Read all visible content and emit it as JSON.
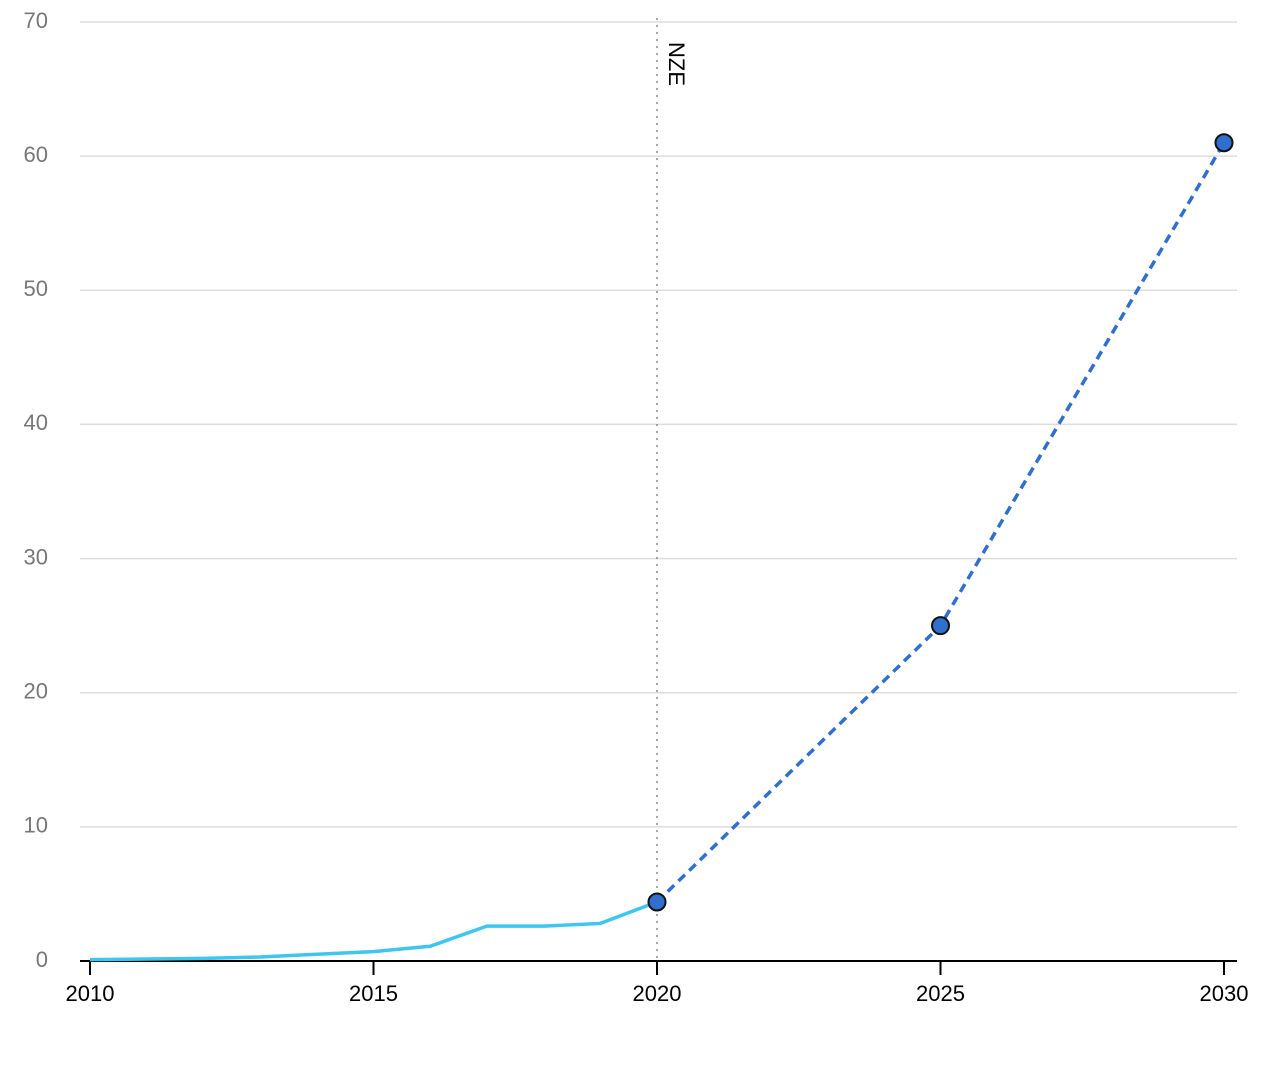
{
  "chart_data": {
    "type": "line",
    "x": [
      2010,
      2011,
      2012,
      2013,
      2014,
      2015,
      2016,
      2017,
      2018,
      2019,
      2020,
      2025,
      2030
    ],
    "series": [
      {
        "color": "#3ec6f0",
        "style": "solid",
        "markers": false,
        "values": [
          0.1,
          0.15,
          0.2,
          0.3,
          0.5,
          0.7,
          1.1,
          2.6,
          2.6,
          2.8,
          4.4,
          null,
          null
        ]
      },
      {
        "color": "#2f6fce",
        "style": "dashed",
        "markers": true,
        "values": [
          null,
          null,
          null,
          null,
          null,
          null,
          null,
          null,
          null,
          null,
          4.4,
          25,
          61
        ]
      }
    ],
    "annotations": [
      {
        "x": 2020,
        "text": "NZE"
      }
    ],
    "xlim": [
      2010,
      2030
    ],
    "xticks": [
      2010,
      2015,
      2020,
      2025,
      2030
    ],
    "ylim": [
      0,
      70
    ],
    "yticks": [
      0,
      10,
      20,
      30,
      40,
      50,
      60,
      70
    ],
    "grid": true
  }
}
